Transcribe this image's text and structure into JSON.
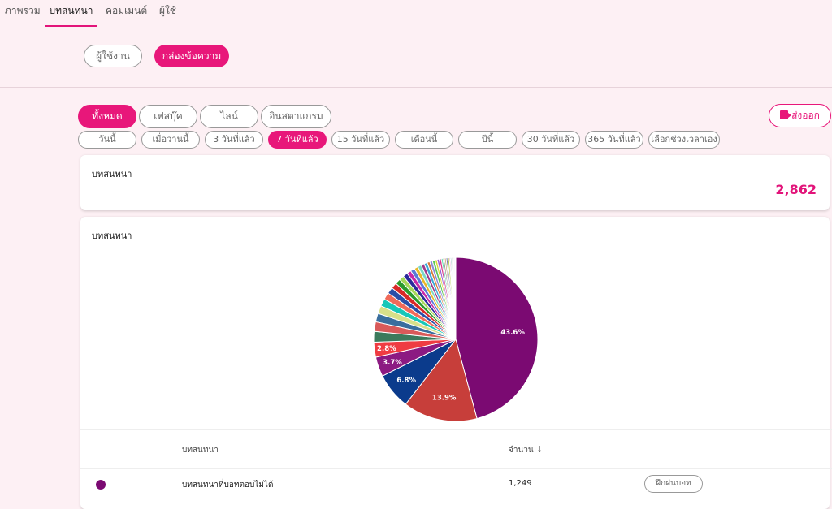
{
  "nav": {
    "overview": "ภาพรวม",
    "conversations": "บทสนทนา",
    "comments": "คอมเมนต์",
    "users": "ผู้ใช้"
  },
  "modes": {
    "user": "ผู้ใช้งาน",
    "inbox": "กล่องข้อความ"
  },
  "channels": {
    "all": "ทั้งหมด",
    "facebook": "เฟสบุ๊ค",
    "line": "ไลน์",
    "instagram": "อินสตาแกรม"
  },
  "export_label": "ส่งออก",
  "ranges": {
    "today": "วันนี้",
    "yesterday": "เมื่อวานนี้",
    "d3": "3 วันที่แล้ว",
    "d7": "7 วันที่แล้ว",
    "d15": "15 วันที่แล้ว",
    "month": "เดือนนี้",
    "year": "ปีนี้",
    "d30": "30 วันที่แล้ว",
    "d365": "365 วันที่แล้ว",
    "custom": "เลือกช่วงเวลาเอง"
  },
  "summary": {
    "title": "บทสนทนา",
    "total": "2,862"
  },
  "chart_card": {
    "title": "บทสนทนา"
  },
  "chart_data": {
    "type": "pie",
    "values": [
      43.6,
      13.9,
      6.8,
      3.7,
      2.8,
      2.0,
      1.8,
      1.6,
      1.5,
      1.4,
      1.3,
      1.2,
      1.1,
      1.0,
      0.9,
      0.9,
      0.8,
      0.8,
      0.7,
      0.7,
      0.6,
      0.6,
      0.5,
      0.5,
      0.5,
      0.4,
      0.4,
      0.4,
      0.3,
      0.3,
      0.3,
      0.3,
      0.3,
      0.2,
      0.2,
      0.2,
      0.2,
      0.2,
      0.1,
      0.1
    ],
    "labels_shown": [
      "43.6%",
      "13.9%",
      "6.8%",
      "3.7%",
      "2.8%"
    ],
    "colors": [
      "#7b0a72",
      "#c73e3a",
      "#0b3b8c",
      "#8c1a82",
      "#ef3c42",
      "#3c7a5c",
      "#d85a5a",
      "#3a6e9e",
      "#d8e08a",
      "#17c7b8",
      "#f06a5a",
      "#2a4ea8",
      "#d82828",
      "#2c9a2c",
      "#a6d85a",
      "#2a2a9a",
      "#c828a8",
      "#5a7ad8",
      "#e8b828",
      "#7ad8c8",
      "#a03a8a",
      "#3aa8d8",
      "#d87a3a",
      "#8a8ad8",
      "#5ac85a",
      "#d8d83a",
      "#9a5ad8",
      "#d83a8a",
      "#3ad89a",
      "#888888",
      "#c8a87a",
      "#6a6aa8",
      "#a8c83a",
      "#d85ab8",
      "#3a8a8a",
      "#b8b8b8",
      "#e0c0d0",
      "#c0d0e0",
      "#d0e0c0",
      "#e8e8e8"
    ]
  },
  "table": {
    "col_conversation": "บทสนทนา",
    "col_count": "จำนวน",
    "rows": [
      {
        "name": "บทสนทนาที่บอทตอบไม่ได้",
        "count": "1,249",
        "action": "ฝึกฝนบอท",
        "color": "#7b0a72"
      }
    ]
  }
}
